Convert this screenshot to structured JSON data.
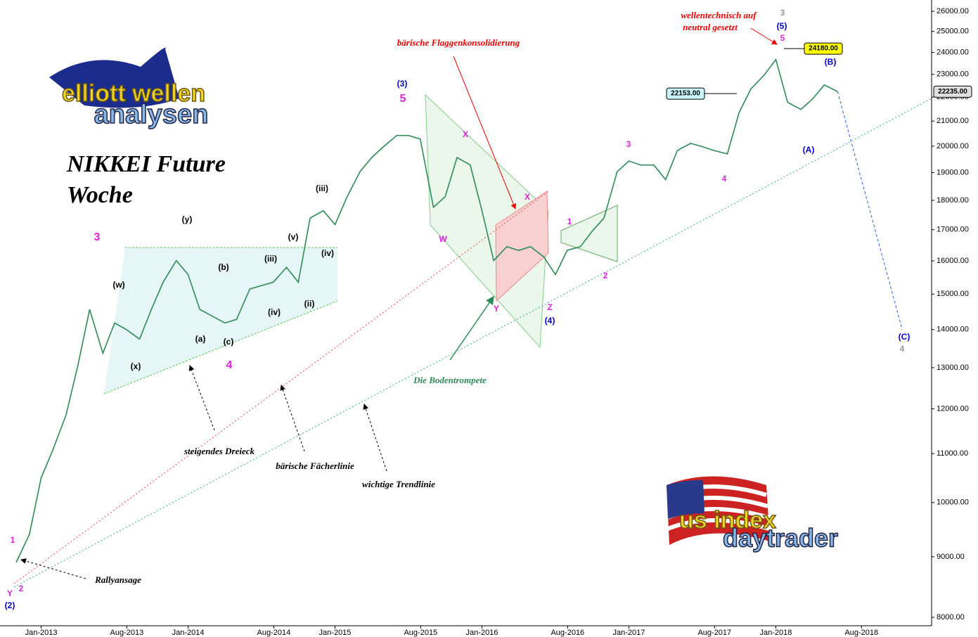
{
  "chart_data": {
    "type": "line",
    "title": [
      "NIKKEI Future",
      "Woche"
    ],
    "logos": [
      "elliott wellen",
      "analysen",
      "us index",
      "daytrader"
    ],
    "notes": [
      "bärische Flaggenkonsolidierung",
      "wellentechnisch auf",
      "neutral gesetzt",
      "Die Bodentrompete",
      "steigendes Dreieck",
      "bärische Fächerlinie",
      "wichtige Trendlinie",
      "Rallyansage"
    ],
    "log_scale": true,
    "color": "#2e8b57",
    "x": [
      2012.83,
      2012.92,
      2013.0,
      2013.08,
      2013.17,
      2013.25,
      2013.33,
      2013.42,
      2013.5,
      2013.58,
      2013.67,
      2013.75,
      2013.83,
      2013.92,
      2014.0,
      2014.08,
      2014.17,
      2014.25,
      2014.33,
      2014.42,
      2014.5,
      2014.58,
      2014.67,
      2014.75,
      2014.83,
      2014.92,
      2015.0,
      2015.08,
      2015.17,
      2015.25,
      2015.33,
      2015.42,
      2015.5,
      2015.58,
      2015.67,
      2015.75,
      2015.83,
      2015.92,
      2016.0,
      2016.08,
      2016.17,
      2016.25,
      2016.33,
      2016.42,
      2016.5,
      2016.58,
      2016.67,
      2016.75,
      2016.83,
      2016.92,
      2017.0,
      2017.08,
      2017.17,
      2017.25,
      2017.33,
      2017.42,
      2017.5,
      2017.58,
      2017.67,
      2017.75,
      2017.83,
      2017.92,
      2018.0,
      2018.08,
      2018.17,
      2018.25,
      2018.33,
      2018.42
    ],
    "values": [
      8900,
      9400,
      10490,
      11080,
      11860,
      13060,
      14560,
      13370,
      14180,
      14000,
      13740,
      14560,
      15350,
      16010,
      15580,
      14560,
      14360,
      14180,
      14280,
      15150,
      15250,
      15350,
      15800,
      15350,
      17390,
      17640,
      17170,
      18100,
      19030,
      19560,
      19980,
      20420,
      20420,
      20280,
      17760,
      18130,
      19560,
      19280,
      17640,
      16010,
      16450,
      16330,
      16450,
      16130,
      15580,
      16330,
      16450,
      16950,
      17390,
      19030,
      19430,
      19280,
      19280,
      18740,
      19830,
      20110,
      19980,
      19830,
      19700,
      21350,
      22350,
      22960,
      23670,
      21780,
      21480,
      21920,
      22530,
      22240
    ],
    "forecast": {
      "x": [
        2018.42,
        2018.86
      ],
      "values": [
        22240,
        14000
      ],
      "color": "#3060e0"
    },
    "price_markers": [
      {
        "value": 24180,
        "label": "24180.00"
      },
      {
        "value": 22153,
        "label": "22153.00"
      },
      {
        "value": 22235,
        "label": "22235.00"
      }
    ],
    "wave_labels": [
      "(3)",
      "5",
      "3",
      "4",
      "X",
      "W",
      "X",
      "Y",
      "Z",
      "(4)",
      "3",
      "4",
      "1",
      "2",
      "(5)",
      "5",
      "3",
      "(B)",
      "(A)",
      "(C)",
      "4",
      "1",
      "2",
      "Y",
      "(2)",
      "(w)",
      "(x)",
      "(y)",
      "(iii)",
      "(v)",
      "(iv)",
      "(a)",
      "(b)",
      "(c)",
      "(ii)",
      "(iii)",
      "(iv)"
    ],
    "xlim": [
      2012.72,
      2019.06
    ],
    "xticks": [
      {
        "value": 2013.0,
        "label": "Jan-2013"
      },
      {
        "value": 2013.583,
        "label": "Aug-2013"
      },
      {
        "value": 2014.0,
        "label": "Jan-2014"
      },
      {
        "value": 2014.583,
        "label": "Aug-2014"
      },
      {
        "value": 2015.0,
        "label": "Jan-2015"
      },
      {
        "value": 2015.583,
        "label": "Aug-2015"
      },
      {
        "value": 2016.0,
        "label": "Jan-2016"
      },
      {
        "value": 2016.583,
        "label": "Aug-2016"
      },
      {
        "value": 2017.0,
        "label": "Jan-2017"
      },
      {
        "value": 2017.583,
        "label": "Aug-2017"
      },
      {
        "value": 2018.0,
        "label": "Jan-2018"
      },
      {
        "value": 2018.583,
        "label": "Aug-2018"
      }
    ],
    "ylim": [
      7870,
      26575
    ],
    "yticks": [
      {
        "value": 8000,
        "label": "8000.00"
      },
      {
        "value": 9000,
        "label": "9000.00"
      },
      {
        "value": 10000,
        "label": "10000.00"
      },
      {
        "value": 11000,
        "label": "11000.00"
      },
      {
        "value": 12000,
        "label": "12000.00"
      },
      {
        "value": 13000,
        "label": "13000.00"
      },
      {
        "value": 14000,
        "label": "14000.00"
      },
      {
        "value": 15000,
        "label": "15000.00"
      },
      {
        "value": 16000,
        "label": "16000.00"
      },
      {
        "value": 17000,
        "label": "17000.00"
      },
      {
        "value": 18000,
        "label": "18000.00"
      },
      {
        "value": 19000,
        "label": "19000.00"
      },
      {
        "value": 20000,
        "label": "20000.00"
      },
      {
        "value": 21000,
        "label": "21000.00"
      },
      {
        "value": 22000,
        "label": "22000.00"
      },
      {
        "value": 23000,
        "label": "23000.00"
      },
      {
        "value": 24000,
        "label": "24000.00"
      },
      {
        "value": 25000,
        "label": "25000.00"
      },
      {
        "value": 26000,
        "label": "26000.00"
      }
    ]
  }
}
